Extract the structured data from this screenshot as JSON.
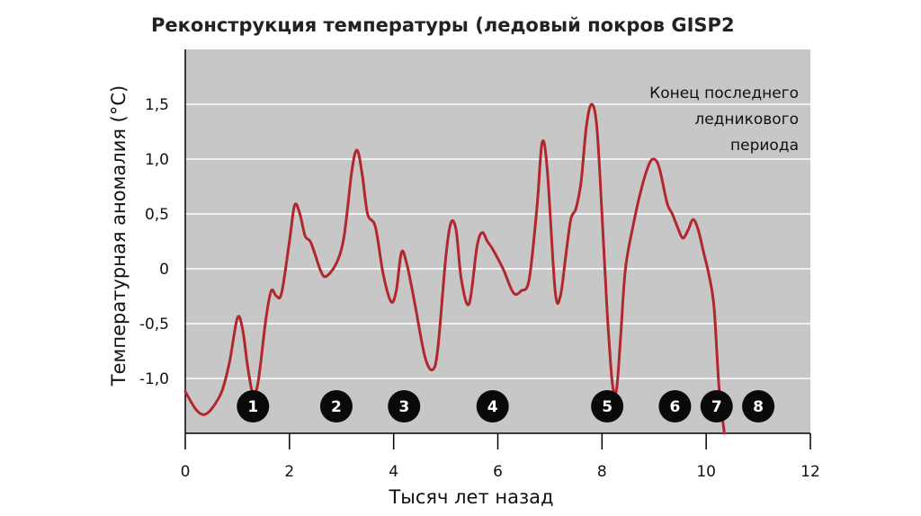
{
  "chart_data": {
    "type": "line",
    "title": "Реконструкция температуры (ледовый покров GISP2",
    "xlabel": "Тысяч лет назад",
    "ylabel": "Температурная аномалия (°C)",
    "xlim": [
      0,
      12
    ],
    "ylim": [
      -1.5,
      2.0
    ],
    "x_ticks": [
      0,
      2,
      4,
      6,
      8,
      10,
      12
    ],
    "x_tick_labels": [
      "0",
      "2",
      "4",
      "6",
      "8",
      "10",
      "12"
    ],
    "y_ticks": [
      -1.0,
      -0.5,
      0,
      0.5,
      1.0,
      1.5
    ],
    "y_tick_labels": [
      "-1,0",
      "-0,5",
      "0",
      "0,5",
      "1,0",
      "1,5"
    ],
    "grid": "horizontal",
    "annotation": [
      "Конец последнего",
      "ледникового",
      "периода"
    ],
    "markers": [
      {
        "label": "1",
        "x": 1.3
      },
      {
        "label": "2",
        "x": 2.9
      },
      {
        "label": "3",
        "x": 4.2
      },
      {
        "label": "4",
        "x": 5.9
      },
      {
        "label": "5",
        "x": 8.1
      },
      {
        "label": "6",
        "x": 9.4
      },
      {
        "label": "7",
        "x": 10.2
      },
      {
        "label": "8",
        "x": 11.0
      }
    ],
    "series": [
      {
        "color": "#b2272d",
        "x": [
          0,
          0.2,
          0.35,
          0.5,
          0.7,
          0.85,
          1.0,
          1.1,
          1.2,
          1.3,
          1.38,
          1.45,
          1.55,
          1.65,
          1.75,
          1.85,
          2.0,
          2.1,
          2.2,
          2.3,
          2.4,
          2.5,
          2.6,
          2.7,
          2.9,
          3.05,
          3.2,
          3.3,
          3.4,
          3.5,
          3.65,
          3.8,
          3.95,
          4.05,
          4.15,
          4.25,
          4.4,
          4.6,
          4.75,
          4.85,
          5.0,
          5.1,
          5.2,
          5.3,
          5.45,
          5.6,
          5.7,
          5.8,
          5.9,
          6.1,
          6.3,
          6.45,
          6.6,
          6.75,
          6.85,
          6.95,
          7.1,
          7.2,
          7.3,
          7.4,
          7.5,
          7.6,
          7.7,
          7.8,
          7.9,
          8.0,
          8.1,
          8.2,
          8.28,
          8.36,
          8.45,
          8.6,
          8.75,
          8.9,
          9.0,
          9.1,
          9.25,
          9.35,
          9.45,
          9.55,
          9.65,
          9.75,
          9.85,
          9.95,
          10.05,
          10.15,
          10.25,
          10.35
        ],
        "y": [
          -1.12,
          -1.28,
          -1.33,
          -1.28,
          -1.12,
          -0.85,
          -0.45,
          -0.55,
          -0.9,
          -1.15,
          -1.08,
          -0.85,
          -0.45,
          -0.2,
          -0.25,
          -0.22,
          0.25,
          0.58,
          0.5,
          0.3,
          0.25,
          0.12,
          -0.02,
          -0.07,
          0.05,
          0.3,
          0.9,
          1.08,
          0.85,
          0.5,
          0.38,
          -0.05,
          -0.3,
          -0.2,
          0.15,
          0.05,
          -0.3,
          -0.8,
          -0.92,
          -0.72,
          0.1,
          0.42,
          0.35,
          -0.1,
          -0.32,
          0.2,
          0.33,
          0.25,
          0.18,
          0.0,
          -0.22,
          -0.2,
          -0.1,
          0.55,
          1.15,
          0.9,
          -0.2,
          -0.25,
          0.1,
          0.45,
          0.55,
          0.8,
          1.3,
          1.5,
          1.3,
          0.5,
          -0.4,
          -1.05,
          -1.1,
          -0.6,
          0.0,
          0.4,
          0.72,
          0.95,
          1.0,
          0.92,
          0.6,
          0.5,
          0.38,
          0.28,
          0.35,
          0.45,
          0.35,
          0.15,
          -0.05,
          -0.35,
          -1.1,
          -1.5
        ]
      }
    ]
  }
}
